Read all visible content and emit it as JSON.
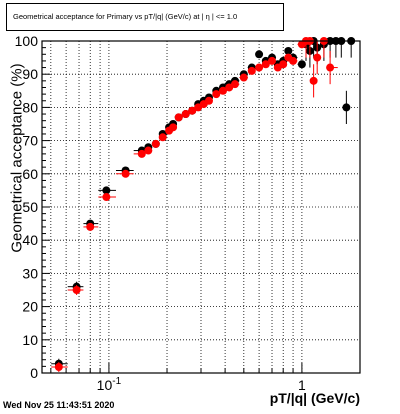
{
  "title": "Geometrical acceptance for Primary vs pT/|q| (GeV/c) at | η | <= 1.0",
  "timestamp": "Wed Nov 25 11:43:51 2020",
  "chart_data": {
    "type": "scatter",
    "title": "Geometrical acceptance for Primary vs pT/|q| (GeV/c) at | η | <= 1.0",
    "xlabel": "pT/|q| (GeV/c)",
    "ylabel": "Geometrical acceptance (%)",
    "xscale": "log",
    "xlim": [
      0.045,
      2.0
    ],
    "ylim": [
      0,
      100
    ],
    "grid": true,
    "x_tick_labels": [
      "10^-1",
      "1"
    ],
    "x_tick_values": [
      0.1,
      1
    ],
    "y_ticks": [
      0,
      10,
      20,
      30,
      40,
      50,
      60,
      70,
      80,
      90,
      100
    ],
    "series": [
      {
        "color": "#000000",
        "points": [
          [
            0.055,
            2.8
          ],
          [
            0.068,
            26
          ],
          [
            0.08,
            45
          ],
          [
            0.097,
            55
          ],
          [
            0.122,
            61
          ],
          [
            0.148,
            67
          ],
          [
            0.16,
            68
          ],
          [
            0.175,
            69
          ],
          [
            0.19,
            72
          ],
          [
            0.205,
            74
          ],
          [
            0.215,
            75
          ],
          [
            0.23,
            77
          ],
          [
            0.25,
            78
          ],
          [
            0.27,
            79
          ],
          [
            0.29,
            81
          ],
          [
            0.31,
            82
          ],
          [
            0.33,
            83
          ],
          [
            0.36,
            85
          ],
          [
            0.39,
            86
          ],
          [
            0.42,
            87
          ],
          [
            0.45,
            88
          ],
          [
            0.5,
            90
          ],
          [
            0.55,
            92
          ],
          [
            0.6,
            96
          ],
          [
            0.65,
            94
          ],
          [
            0.7,
            95
          ],
          [
            0.75,
            93
          ],
          [
            0.8,
            94
          ],
          [
            0.85,
            97
          ],
          [
            0.9,
            95
          ],
          [
            1.0,
            93
          ],
          [
            1.05,
            99
          ],
          [
            1.1,
            97
          ],
          [
            1.15,
            100
          ],
          [
            1.2,
            98
          ],
          [
            1.3,
            99
          ],
          [
            1.4,
            100
          ],
          [
            1.5,
            100
          ],
          [
            1.6,
            100
          ],
          [
            1.7,
            80
          ],
          [
            1.8,
            100
          ]
        ]
      },
      {
        "color": "#ff0000",
        "points": [
          [
            0.055,
            1.8
          ],
          [
            0.068,
            25
          ],
          [
            0.08,
            44
          ],
          [
            0.097,
            53
          ],
          [
            0.122,
            60
          ],
          [
            0.148,
            66
          ],
          [
            0.16,
            67
          ],
          [
            0.175,
            69
          ],
          [
            0.19,
            71
          ],
          [
            0.205,
            73
          ],
          [
            0.215,
            74
          ],
          [
            0.23,
            77
          ],
          [
            0.25,
            78
          ],
          [
            0.27,
            79
          ],
          [
            0.29,
            80
          ],
          [
            0.31,
            81
          ],
          [
            0.33,
            82
          ],
          [
            0.36,
            84
          ],
          [
            0.39,
            85
          ],
          [
            0.42,
            86
          ],
          [
            0.45,
            87
          ],
          [
            0.5,
            89
          ],
          [
            0.55,
            91
          ],
          [
            0.6,
            92
          ],
          [
            0.65,
            93
          ],
          [
            0.7,
            94
          ],
          [
            0.75,
            92
          ],
          [
            0.8,
            93
          ],
          [
            0.85,
            95
          ],
          [
            0.9,
            94
          ],
          [
            1.0,
            99
          ],
          [
            1.05,
            100
          ],
          [
            1.1,
            100
          ],
          [
            1.15,
            88
          ],
          [
            1.2,
            95
          ],
          [
            1.3,
            100
          ],
          [
            1.4,
            92
          ]
        ]
      }
    ]
  }
}
